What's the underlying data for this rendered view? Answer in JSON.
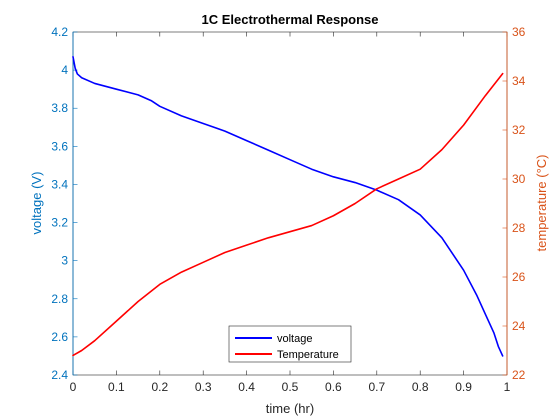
{
  "chart_data": {
    "type": "line",
    "title": "1C Electrothermal Response",
    "xlabel": "time (hr)",
    "ylabel_left": "voltage (V)",
    "ylabel_right": "temperature (°C)",
    "xlim": [
      0,
      1
    ],
    "ylim_left": [
      2.4,
      4.2
    ],
    "ylim_right": [
      22,
      36
    ],
    "x_ticks": [
      "0",
      "0.1",
      "0.2",
      "0.3",
      "0.4",
      "0.5",
      "0.6",
      "0.7",
      "0.8",
      "0.9",
      "1"
    ],
    "y_left_ticks": [
      "2.4",
      "2.6",
      "2.8",
      "3",
      "3.2",
      "3.4",
      "3.6",
      "3.8",
      "4",
      "4.2"
    ],
    "y_right_ticks": [
      "22",
      "24",
      "26",
      "28",
      "30",
      "32",
      "34",
      "36"
    ],
    "grid": false,
    "legend_position": "bottom-center",
    "colors": {
      "left_axis": "#0072BD",
      "right_axis": "#D95319",
      "voltage_line": "#0000FF",
      "temperature_line": "#FF0000"
    },
    "series": [
      {
        "name": "voltage",
        "axis": "left",
        "x": [
          0,
          0.005,
          0.01,
          0.02,
          0.05,
          0.1,
          0.15,
          0.18,
          0.2,
          0.25,
          0.3,
          0.35,
          0.4,
          0.45,
          0.5,
          0.55,
          0.6,
          0.65,
          0.7,
          0.75,
          0.8,
          0.85,
          0.9,
          0.93,
          0.95,
          0.97,
          0.98,
          0.99
        ],
        "y": [
          4.07,
          4.01,
          3.98,
          3.96,
          3.93,
          3.9,
          3.87,
          3.84,
          3.81,
          3.76,
          3.72,
          3.68,
          3.63,
          3.58,
          3.53,
          3.48,
          3.44,
          3.41,
          3.37,
          3.32,
          3.24,
          3.12,
          2.95,
          2.82,
          2.72,
          2.62,
          2.55,
          2.5
        ]
      },
      {
        "name": "Temperature",
        "axis": "right",
        "x": [
          0,
          0.02,
          0.05,
          0.1,
          0.15,
          0.2,
          0.25,
          0.3,
          0.35,
          0.4,
          0.45,
          0.5,
          0.55,
          0.6,
          0.65,
          0.7,
          0.75,
          0.8,
          0.85,
          0.9,
          0.95,
          0.99
        ],
        "y": [
          22.8,
          23.0,
          23.4,
          24.2,
          25.0,
          25.7,
          26.2,
          26.6,
          27.0,
          27.3,
          27.6,
          27.85,
          28.1,
          28.5,
          29.0,
          29.6,
          30.0,
          30.4,
          31.2,
          32.2,
          33.4,
          34.3
        ]
      }
    ]
  }
}
